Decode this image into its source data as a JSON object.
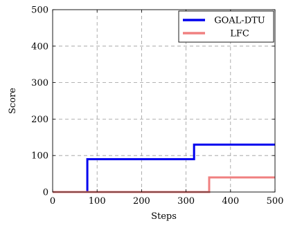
{
  "chart_data": {
    "type": "line",
    "title": "",
    "xlabel": "Steps",
    "ylabel": "Score",
    "xlim": [
      0,
      500
    ],
    "ylim": [
      0,
      500
    ],
    "xticks": [
      0,
      100,
      200,
      300,
      400,
      500
    ],
    "yticks": [
      0,
      100,
      200,
      300,
      400,
      500
    ],
    "grid": true,
    "legend_position": "top-right",
    "series": [
      {
        "name": "GOAL-DTU",
        "color": "#0000ee",
        "step": true,
        "points": [
          [
            0,
            0
          ],
          [
            78,
            0
          ],
          [
            78,
            90
          ],
          [
            318,
            90
          ],
          [
            318,
            130
          ],
          [
            500,
            130
          ]
        ]
      },
      {
        "name": "LFC",
        "color": "#f08080",
        "step": true,
        "points": [
          [
            0,
            0
          ],
          [
            352,
            0
          ],
          [
            352,
            40
          ],
          [
            500,
            40
          ]
        ]
      }
    ]
  }
}
